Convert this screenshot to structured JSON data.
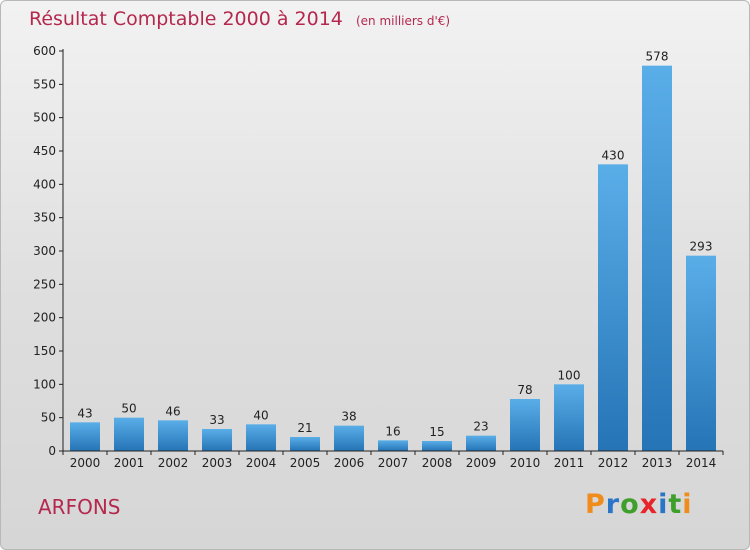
{
  "title": "Résultat Comptable 2000 à 2014",
  "unit": "(en milliers d'€)",
  "commune": "ARFONS",
  "logo": {
    "letters": [
      "P",
      "r",
      "o",
      "x",
      "i",
      "t",
      "i"
    ],
    "colors": [
      "#f08c1c",
      "#2a74c9",
      "#3f9f2c",
      "#e8242b",
      "#2a74c9",
      "#3f9f2c",
      "#f08c1c"
    ]
  },
  "colors": {
    "title": "#b5284e",
    "bar_top": "#5aaee8",
    "bar_bottom": "#2574b6",
    "axis": "#222222"
  },
  "chart_data": {
    "type": "bar",
    "title": "Résultat Comptable 2000 à 2014",
    "xlabel": "",
    "ylabel": "(en milliers d'€)",
    "categories": [
      "2000",
      "2001",
      "2002",
      "2003",
      "2004",
      "2005",
      "2006",
      "2007",
      "2008",
      "2009",
      "2010",
      "2011",
      "2012",
      "2013",
      "2014"
    ],
    "values": [
      43,
      50,
      46,
      33,
      40,
      21,
      38,
      16,
      15,
      23,
      78,
      100,
      430,
      578,
      293
    ],
    "ylim": [
      0,
      600
    ],
    "yticks": [
      0,
      50,
      100,
      150,
      200,
      250,
      300,
      350,
      400,
      450,
      500,
      550,
      600
    ],
    "grid": false
  }
}
